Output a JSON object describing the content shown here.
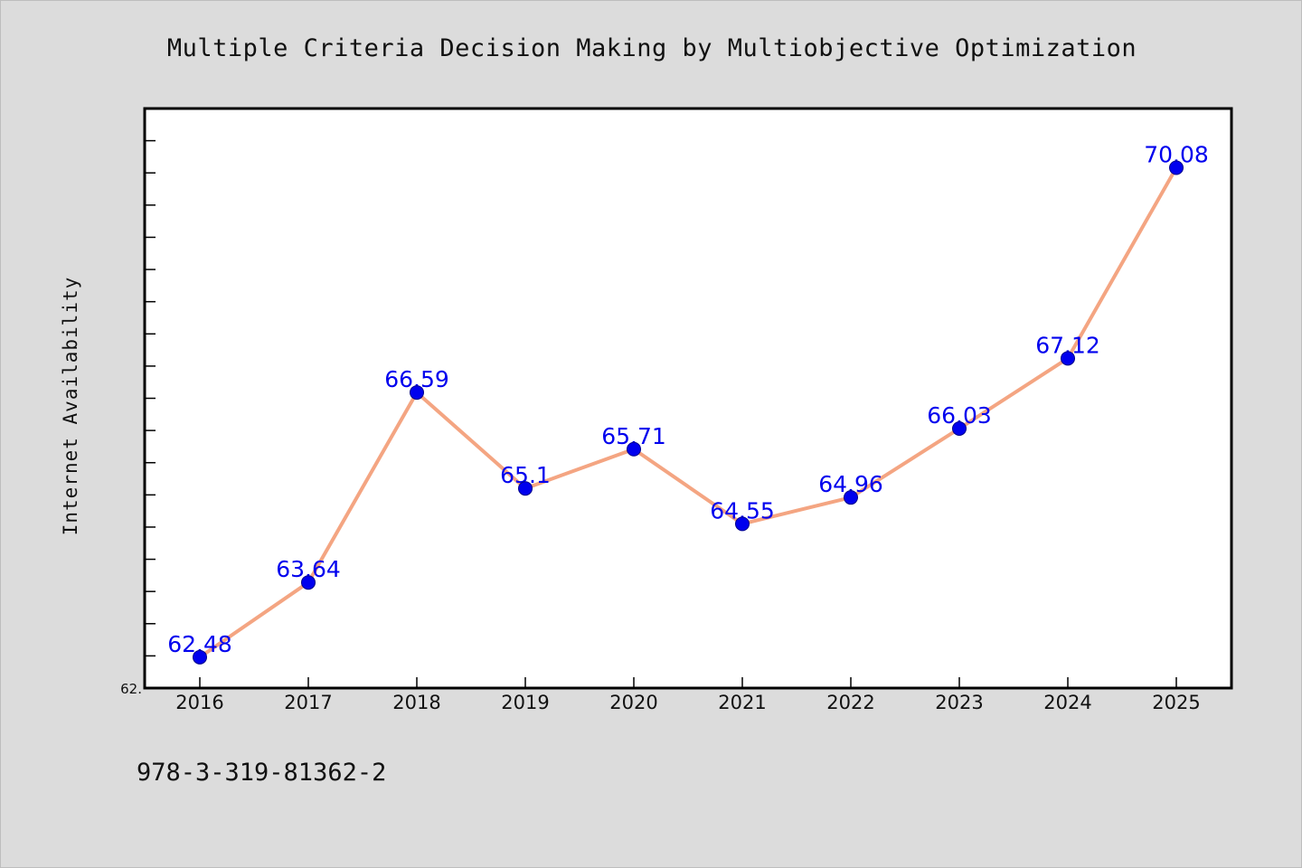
{
  "chart_data": {
    "type": "line",
    "title": "Multiple Criteria Decision Making by Multiobjective Optimization",
    "xlabel": "",
    "ylabel": "Internet Availability",
    "categories": [
      "2016",
      "2017",
      "2018",
      "2019",
      "2020",
      "2021",
      "2022",
      "2023",
      "2024",
      "2025"
    ],
    "series": [
      {
        "values": [
          62.48,
          63.64,
          66.59,
          65.1,
          65.71,
          64.55,
          64.96,
          66.03,
          67.12,
          70.08
        ],
        "data_labels": [
          "62.48",
          "63.64",
          "66.59",
          "65.1",
          "65.71",
          "64.55",
          "64.96",
          "66.03",
          "67.12",
          "70.08"
        ],
        "line_color": "#f4a582",
        "marker_color": "#0000ee"
      }
    ],
    "ylim": [
      62.0,
      71.0
    ],
    "y_tick_labels": [
      "62."
    ],
    "y_minor_tick_count": 18,
    "grid": false,
    "legend": "none"
  },
  "footer": {
    "isbn": "978-3-319-81362-2"
  },
  "colors": {
    "background": "#dcdcdc",
    "plot_background": "#ffffff",
    "axis": "#000000"
  }
}
